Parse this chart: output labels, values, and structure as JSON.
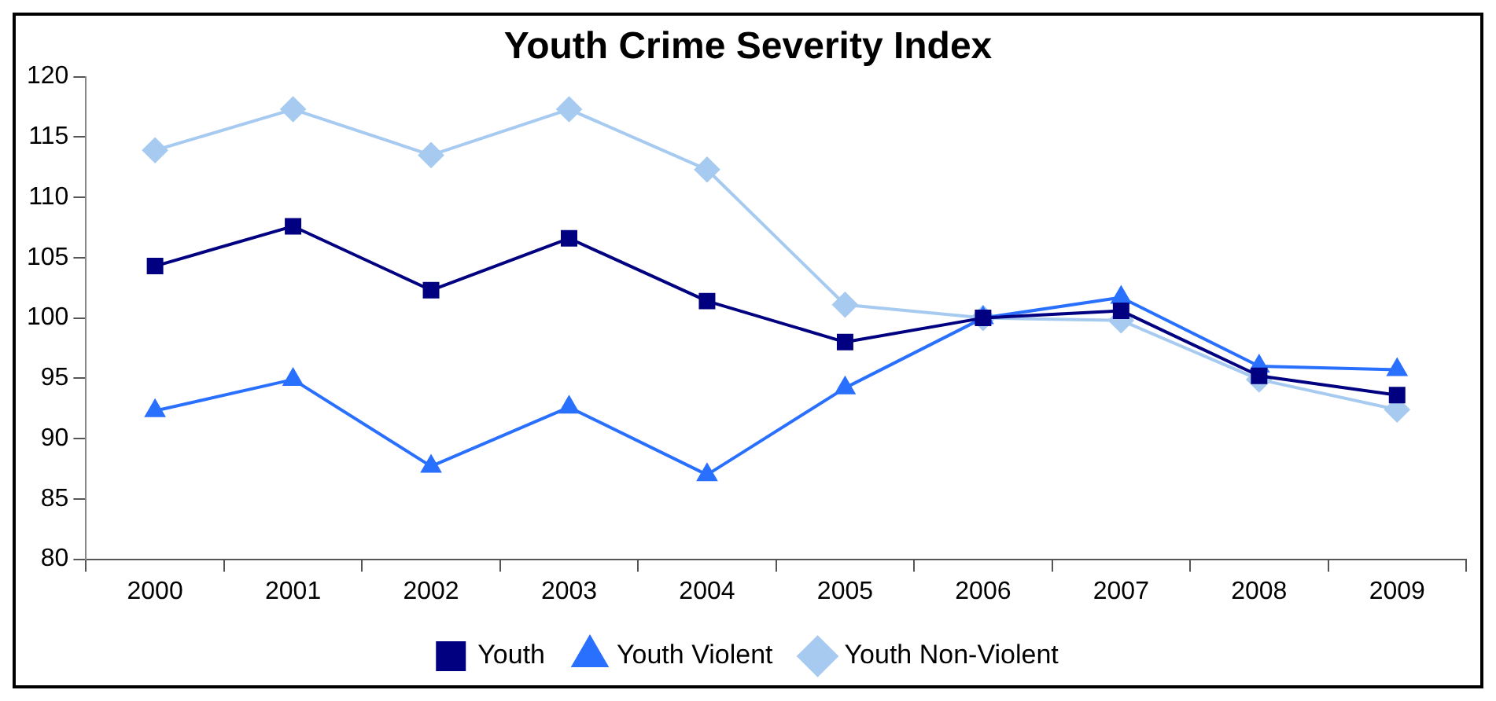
{
  "chart_data": {
    "type": "line",
    "title": "Youth Crime Severity Index",
    "categories": [
      "2000",
      "2001",
      "2002",
      "2003",
      "2004",
      "2005",
      "2006",
      "2007",
      "2008",
      "2009"
    ],
    "series": [
      {
        "name": "Youth",
        "color": "#000080",
        "marker": "square",
        "values": [
          104.3,
          107.6,
          102.3,
          106.6,
          101.4,
          98.0,
          100,
          100.6,
          95.2,
          93.6
        ]
      },
      {
        "name": "Youth Violent",
        "color": "#2970ff",
        "marker": "triangle",
        "values": [
          92.3,
          94.9,
          87.7,
          92.6,
          87.0,
          94.2,
          100,
          101.7,
          96.0,
          95.7
        ]
      },
      {
        "name": "Youth Non-Violent",
        "color": "#a6caf0",
        "marker": "diamond",
        "values": [
          113.9,
          117.3,
          113.5,
          117.3,
          112.3,
          101.1,
          100,
          99.8,
          94.9,
          92.4
        ]
      }
    ],
    "ylim": [
      80,
      120
    ],
    "yticks": [
      80,
      85,
      90,
      95,
      100,
      105,
      110,
      115,
      120
    ],
    "grid": false,
    "legend": "bottom",
    "line_style": "solid"
  }
}
